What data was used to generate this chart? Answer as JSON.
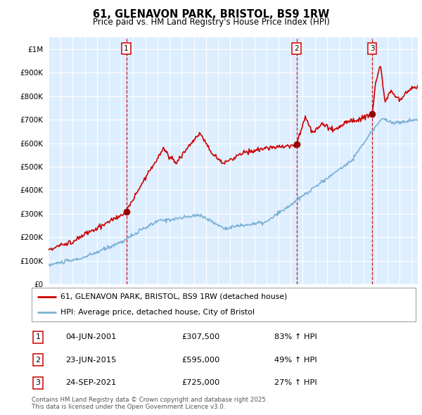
{
  "title": "61, GLENAVON PARK, BRISTOL, BS9 1RW",
  "subtitle": "Price paid vs. HM Land Registry's House Price Index (HPI)",
  "legend_line1": "61, GLENAVON PARK, BRISTOL, BS9 1RW (detached house)",
  "legend_line2": "HPI: Average price, detached house, City of Bristol",
  "sale1_date": "04-JUN-2001",
  "sale1_price": 307500,
  "sale1_hpi": "83% ↑ HPI",
  "sale2_date": "23-JUN-2015",
  "sale2_price": 595000,
  "sale2_hpi": "49% ↑ HPI",
  "sale3_date": "24-SEP-2021",
  "sale3_price": 725000,
  "sale3_hpi": "27% ↑ HPI",
  "footer": "Contains HM Land Registry data © Crown copyright and database right 2025.\nThis data is licensed under the Open Government Licence v3.0.",
  "red_color": "#cc0000",
  "blue_color": "#7ab0d4",
  "sale_marker_color": "#990000",
  "vline_color": "#cc0000",
  "bg_chart": "#ddeeff",
  "background_color": "#ffffff",
  "grid_color": "#ffffff",
  "ylim": [
    0,
    1050000
  ],
  "yticks": [
    0,
    100000,
    200000,
    300000,
    400000,
    500000,
    600000,
    700000,
    800000,
    900000,
    1000000
  ],
  "sale1_year": 2001.42,
  "sale2_year": 2015.48,
  "sale3_year": 2021.73,
  "xmin": 1995,
  "xmax": 2025.5
}
